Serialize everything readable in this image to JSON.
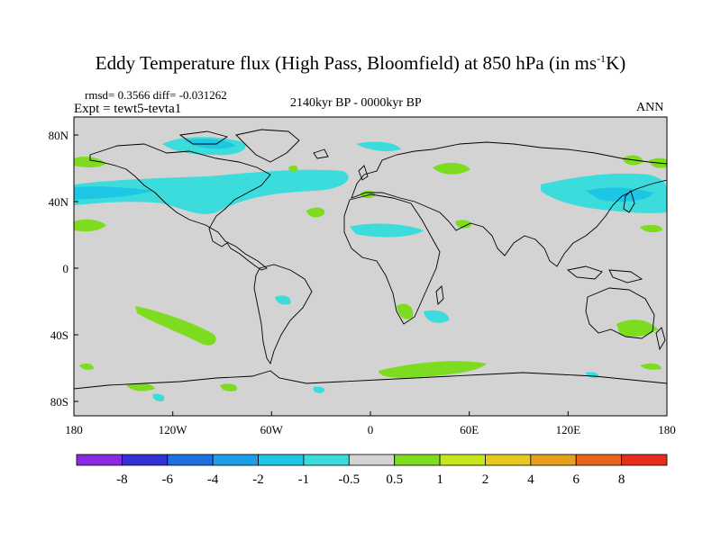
{
  "title": {
    "main": "Eddy Temperature flux (High Pass, Bloomfield) at 850 hPa (in ms",
    "exponent": "-1",
    "unit_tail": "K)"
  },
  "stats": "rmsd= 0.3566 diff= -0.031262",
  "experiment": "Expt = tewt5-tevta1",
  "period": "2140kyr BP - 0000kyr BP",
  "season": "ANN",
  "axes": {
    "lon_ticks": [
      "180",
      "120W",
      "60W",
      "0",
      "60E",
      "120E",
      "180"
    ],
    "lat_ticks": [
      "80N",
      "40N",
      "0",
      "40S",
      "80S"
    ]
  },
  "colorbar": {
    "labels": [
      "-8",
      "-6",
      "-4",
      "-2",
      "-1",
      "-0.5",
      "0.5",
      "1",
      "2",
      "4",
      "6",
      "8"
    ],
    "colors": [
      "#8a2be2",
      "#3232d6",
      "#1e6fe0",
      "#1e9ee6",
      "#1ec6e6",
      "#3cdcdc",
      "#d3d3d3",
      "#7ddc1f",
      "#c8e61e",
      "#e6c81e",
      "#e6a01e",
      "#e6641e",
      "#e62d1e"
    ]
  },
  "colors": {
    "land_ocean_bg": "#d3d3d3",
    "positive_1": "#7ddc1f",
    "negative_1": "#3cdcdc",
    "negative_2": "#1ec6e6"
  }
}
